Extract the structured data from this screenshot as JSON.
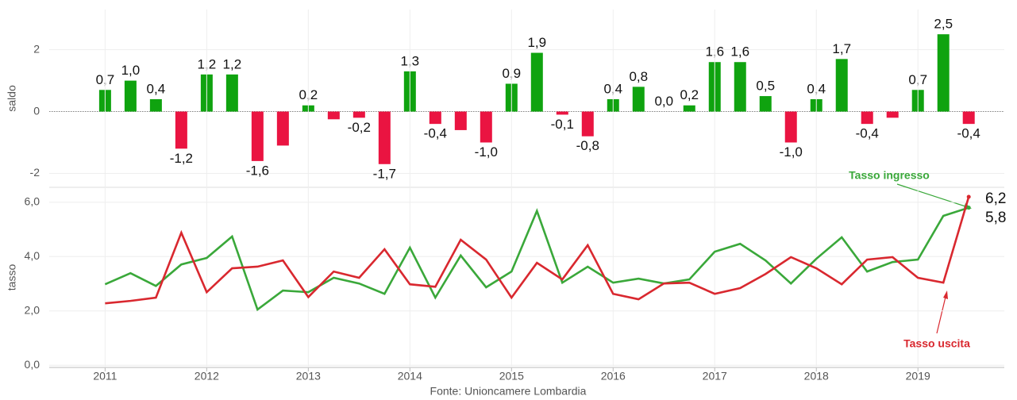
{
  "chart_data": [
    {
      "type": "bar",
      "y_label": "saldo",
      "x": [
        2011,
        2011.25,
        2011.5,
        2011.75,
        2012,
        2012.25,
        2012.5,
        2012.75,
        2013,
        2013.25,
        2013.5,
        2013.75,
        2014,
        2014.25,
        2014.5,
        2014.75,
        2015,
        2015.25,
        2015.5,
        2015.75,
        2016,
        2016.25,
        2016.5,
        2016.75,
        2017,
        2017.25,
        2017.5,
        2017.75,
        2018,
        2018.25,
        2018.5,
        2018.75,
        2019,
        2019.25,
        2019.5
      ],
      "values": [
        0.7,
        1.0,
        0.4,
        -1.2,
        1.2,
        1.2,
        -1.6,
        -1.1,
        0.2,
        -0.25,
        -0.2,
        -1.7,
        1.3,
        -0.4,
        -0.6,
        -1.0,
        0.9,
        1.9,
        -0.1,
        -0.8,
        0.4,
        0.8,
        0.0,
        0.2,
        1.6,
        1.6,
        0.5,
        -1.0,
        0.4,
        1.7,
        -0.4,
        -0.2,
        0.7,
        2.5,
        -0.4
      ],
      "value_labels": [
        "0,7",
        "1,0",
        "0,4",
        "-1,2",
        "1,2",
        "1,2",
        "-1,6",
        null,
        "0,2",
        null,
        "-0,2",
        "-1,7",
        "1,3",
        "-0,4",
        null,
        "-1,0",
        "0,9",
        "1,9",
        "-0,1",
        "-0,8",
        "0,4",
        "0,8",
        "0,0",
        "0,2",
        "1,6",
        "1,6",
        "0,5",
        "-1,0",
        "0,4",
        "1,7",
        "-0,4",
        null,
        "0,7",
        "2,5",
        "-0,4"
      ],
      "positive_color": "#0fa30f",
      "negative_color": "#ea1441",
      "xlim": [
        2010.45,
        2019.85
      ],
      "ylim": [
        -2.45,
        3.3
      ],
      "yticks": [
        -2,
        0,
        2
      ],
      "grid": true
    },
    {
      "type": "line",
      "y_label": "tasso",
      "source": "Fonte: Unioncamere Lombardia",
      "x": [
        2011,
        2011.25,
        2011.5,
        2011.75,
        2012,
        2012.25,
        2012.5,
        2012.75,
        2013,
        2013.25,
        2013.5,
        2013.75,
        2014,
        2014.25,
        2014.5,
        2014.75,
        2015,
        2015.25,
        2015.5,
        2015.75,
        2016,
        2016.25,
        2016.5,
        2016.75,
        2017,
        2017.25,
        2017.5,
        2017.75,
        2018,
        2018.25,
        2018.5,
        2018.75,
        2019,
        2019.25,
        2019.5
      ],
      "series": [
        {
          "name": "Tasso ingresso",
          "color": "#3aa83a",
          "end_label": "5,8",
          "values": [
            2.98,
            3.39,
            2.92,
            3.71,
            3.95,
            4.74,
            2.05,
            2.75,
            2.69,
            3.22,
            3.01,
            2.63,
            4.33,
            2.49,
            4.04,
            2.87,
            3.45,
            5.68,
            3.04,
            3.63,
            3.04,
            3.19,
            3.01,
            3.16,
            4.18,
            4.47,
            3.86,
            3.01,
            3.92,
            4.71,
            3.45,
            3.8,
            3.89,
            5.5,
            5.8
          ]
        },
        {
          "name": "Tasso uscita",
          "color": "#d9282f",
          "end_label": "6,2",
          "values": [
            2.28,
            2.37,
            2.49,
            4.88,
            2.69,
            3.57,
            3.63,
            3.86,
            2.51,
            3.45,
            3.22,
            4.27,
            2.98,
            2.89,
            4.62,
            3.89,
            2.49,
            3.77,
            3.16,
            4.42,
            2.63,
            2.43,
            3.01,
            3.04,
            2.63,
            2.84,
            3.36,
            3.98,
            3.57,
            2.98,
            3.89,
            3.98,
            3.22,
            3.04,
            6.2
          ]
        }
      ],
      "xlim": [
        2010.45,
        2019.85
      ],
      "ylim": [
        -0.08,
        6.55
      ],
      "yticks": [
        {
          "value": 0,
          "label": "0,0"
        },
        {
          "value": 2,
          "label": "2,0"
        },
        {
          "value": 4,
          "label": "4,0"
        },
        {
          "value": 6,
          "label": "6,0"
        }
      ],
      "xticks": [
        2011,
        2012,
        2013,
        2014,
        2015,
        2016,
        2017,
        2018,
        2019
      ],
      "grid": true
    }
  ]
}
